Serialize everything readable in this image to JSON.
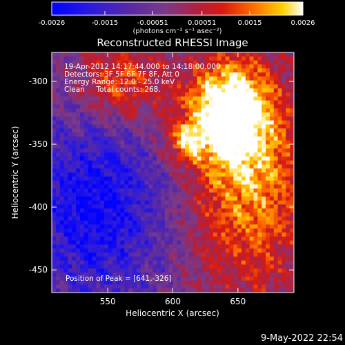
{
  "chart_data": {
    "type": "heatmap",
    "title": "Reconstructed RHESSI Image",
    "xlabel": "Heliocentric X (arcsec)",
    "ylabel": "Heliocentric Y (arcsec)",
    "xlim": [
      507,
      693
    ],
    "ylim": [
      -468,
      -277
    ],
    "x_ticks": [
      550,
      600,
      650
    ],
    "y_ticks": [
      -300,
      -350,
      -400,
      -450
    ],
    "colorbar": {
      "ticks": [
        "-0.0026",
        "-0.0015",
        "-0.00051",
        "0.00051",
        "0.0015",
        "0.0026"
      ],
      "tick_values": [
        -0.0026,
        -0.0015,
        -0.00051,
        0.00051,
        0.0015,
        0.0026
      ],
      "range": [
        -0.0026,
        0.0026
      ],
      "unit_label": "(photons cm⁻² s⁻¹ asec⁻²)"
    },
    "annotations": [
      "19-Apr-2012 14:17:44.000 to 14:18:00.000",
      "Detectors: 3F 5F 6F 7F 8F, Att 0",
      "Energy Range: 12.0 - 25.0 keV",
      "Clean     Total counts: 268."
    ],
    "peak_label": "Position of Peak = [641,-326]",
    "peak_position": [
      641,
      -326
    ],
    "footer_date": "9-May-2022 22:54",
    "colors": {
      "scale": [
        "#0000ff",
        "#3c1cd0",
        "#5a2aa0",
        "#7a3a90",
        "#a02858",
        "#c01418",
        "#e83a00",
        "#ff8a00",
        "#ffd400",
        "#ffffff"
      ]
    }
  }
}
